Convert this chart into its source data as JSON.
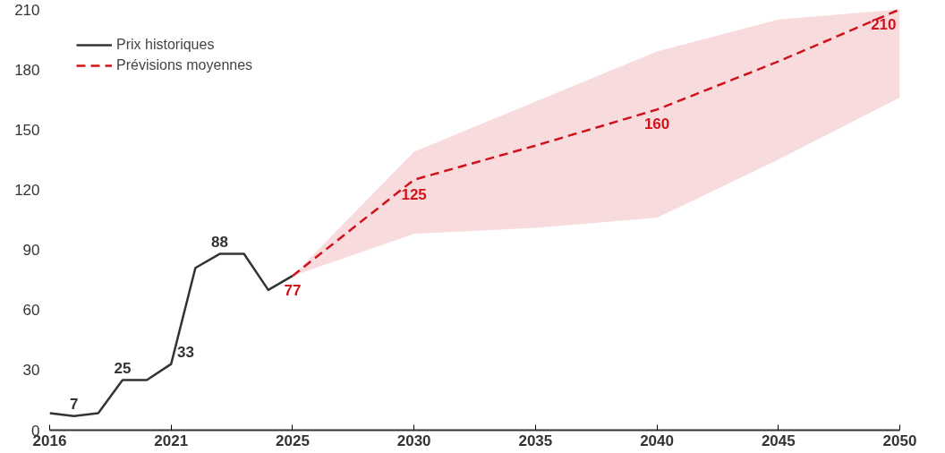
{
  "chart_data": {
    "type": "line",
    "categories": [
      "2016",
      null,
      null,
      null,
      null,
      "2021",
      null,
      null,
      null,
      null,
      "2025",
      null,
      null,
      null,
      null,
      "2030",
      null,
      null,
      null,
      null,
      "2035",
      null,
      null,
      null,
      null,
      "2040",
      null,
      null,
      null,
      null,
      "2045",
      null,
      null,
      null,
      null,
      "2050"
    ],
    "ylim": [
      0,
      210
    ],
    "yticks": [
      0,
      30,
      60,
      90,
      120,
      150,
      180,
      210
    ],
    "grid": false,
    "legend": "top left",
    "series": [
      {
        "name": "Prix historiques",
        "color": "#333333",
        "line_style": "solid",
        "values": [
          8.5,
          7,
          8.5,
          25,
          25,
          33,
          81,
          88,
          88,
          70,
          77,
          null,
          null,
          null,
          null,
          null,
          null,
          null,
          null,
          null,
          null,
          null,
          null,
          null,
          null,
          null,
          null,
          null,
          null,
          null,
          null,
          null,
          null,
          null,
          null,
          null
        ],
        "value_labels": [
          null,
          "7",
          null,
          "25",
          null,
          "33",
          null,
          "88",
          null,
          null,
          null,
          null,
          null,
          null,
          null,
          null,
          null,
          null,
          null,
          null,
          null,
          null,
          null,
          null,
          null,
          null,
          null,
          null,
          null,
          null,
          null,
          null,
          null,
          null,
          null,
          null
        ]
      },
      {
        "name": "Prévisions moyennes",
        "color": "#d0121b",
        "line_style": "dashed",
        "values": [
          null,
          null,
          null,
          null,
          null,
          null,
          null,
          null,
          null,
          null,
          77,
          null,
          null,
          null,
          null,
          125,
          null,
          null,
          null,
          null,
          142,
          null,
          null,
          null,
          null,
          160,
          null,
          null,
          null,
          null,
          184,
          null,
          null,
          null,
          null,
          210
        ],
        "lower": [
          null,
          null,
          null,
          null,
          null,
          null,
          null,
          null,
          null,
          null,
          77,
          null,
          null,
          null,
          null,
          98,
          null,
          null,
          null,
          null,
          101,
          null,
          null,
          null,
          null,
          106,
          null,
          null,
          null,
          null,
          135,
          null,
          null,
          null,
          null,
          166
        ],
        "upper": [
          null,
          null,
          null,
          null,
          null,
          null,
          null,
          null,
          null,
          null,
          77,
          null,
          null,
          null,
          null,
          139,
          null,
          null,
          null,
          null,
          164,
          null,
          null,
          null,
          null,
          189,
          null,
          null,
          null,
          null,
          205,
          null,
          null,
          null,
          null,
          210
        ],
        "value_labels": [
          null,
          null,
          null,
          null,
          null,
          null,
          null,
          null,
          null,
          null,
          "77",
          null,
          null,
          null,
          null,
          "125",
          null,
          null,
          null,
          null,
          null,
          null,
          null,
          null,
          null,
          "160",
          null,
          null,
          null,
          null,
          null,
          null,
          null,
          null,
          null,
          "210"
        ]
      }
    ]
  }
}
